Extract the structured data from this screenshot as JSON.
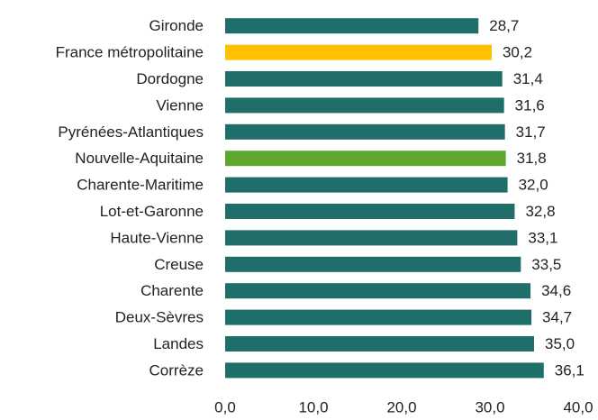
{
  "chart_data": {
    "type": "bar",
    "orientation": "horizontal",
    "categories": [
      "Gironde",
      "France métropolitaine",
      "Dordogne",
      "Vienne",
      "Pyrénées-Atlantiques",
      "Nouvelle-Aquitaine",
      "Charente-Maritime",
      "Lot-et-Garonne",
      "Haute-Vienne",
      "Creuse",
      "Charente",
      "Deux-Sèvres",
      "Landes",
      "Corrèze"
    ],
    "values": [
      28.7,
      30.2,
      31.4,
      31.6,
      31.7,
      31.8,
      32.0,
      32.8,
      33.1,
      33.5,
      34.6,
      34.7,
      35.0,
      36.1
    ],
    "value_labels": [
      "28,7",
      "30,2",
      "31,4",
      "31,6",
      "31,7",
      "31,8",
      "32,0",
      "32,8",
      "33,1",
      "33,5",
      "34,6",
      "34,7",
      "35,0",
      "36,1"
    ],
    "colors": [
      "#1f6e6a",
      "#ffc000",
      "#1f6e6a",
      "#1f6e6a",
      "#1f6e6a",
      "#5ea62e",
      "#1f6e6a",
      "#1f6e6a",
      "#1f6e6a",
      "#1f6e6a",
      "#1f6e6a",
      "#1f6e6a",
      "#1f6e6a",
      "#1f6e6a"
    ],
    "xlim": [
      0,
      40
    ],
    "xticks": [
      {
        "value": 0,
        "label": "0,0"
      },
      {
        "value": 10,
        "label": "10,0"
      },
      {
        "value": 20,
        "label": "20,0"
      },
      {
        "value": 30,
        "label": "30,0"
      },
      {
        "value": 40,
        "label": "40,0"
      }
    ],
    "grid": false
  }
}
